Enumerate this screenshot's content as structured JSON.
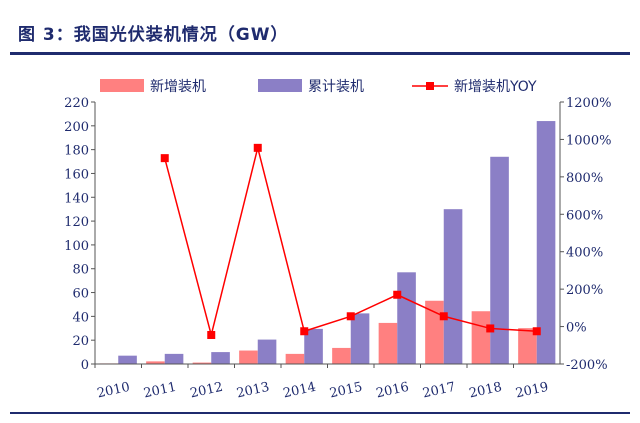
{
  "figure": {
    "title": "图 3：我国光伏装机情况（GW）"
  },
  "chart_data": {
    "type": "bar",
    "categories": [
      "2010",
      "2011",
      "2012",
      "2013",
      "2014",
      "2015",
      "2016",
      "2017",
      "2018",
      "2019"
    ],
    "series": [
      {
        "name": "新增装机",
        "type": "bar",
        "axis": "left",
        "color": "#ff8080",
        "values": [
          0.5,
          2.2,
          1.2,
          11.3,
          8.5,
          13.5,
          34.5,
          53.1,
          44.3,
          30.1
        ]
      },
      {
        "name": "累计装机",
        "type": "bar",
        "axis": "left",
        "color": "#8b7fc6",
        "values": [
          7,
          8.5,
          10,
          20.5,
          29.5,
          42.5,
          77,
          130,
          174,
          204
        ]
      },
      {
        "name": "新增装机YOY",
        "type": "line",
        "axis": "right",
        "color": "#ff0000",
        "values": [
          null,
          900,
          -45,
          955,
          -25,
          55,
          170,
          55,
          -10,
          -25
        ]
      }
    ],
    "yleft": {
      "lim": [
        0,
        220
      ],
      "ticks": [
        "0",
        "20",
        "40",
        "60",
        "80",
        "100",
        "120",
        "140",
        "160",
        "180",
        "200",
        "220"
      ]
    },
    "yright": {
      "lim": [
        -200,
        1200
      ],
      "ticks": [
        "-200%",
        "0%",
        "200%",
        "400%",
        "600%",
        "800%",
        "1000%",
        "1200%"
      ]
    },
    "legend": "top"
  }
}
